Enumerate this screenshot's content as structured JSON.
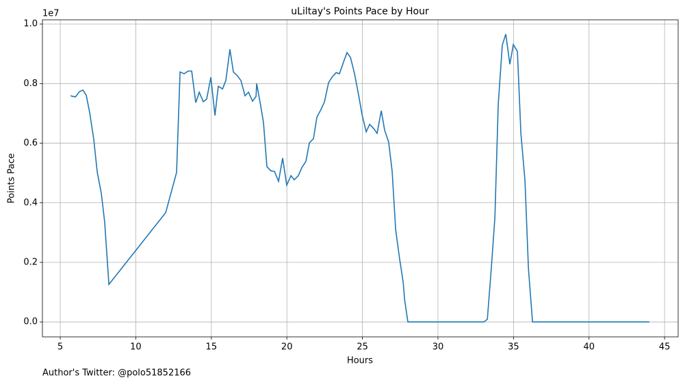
{
  "chart_data": {
    "type": "line",
    "title": "uLiltay's Points Pace by Hour",
    "x_label": "Hours",
    "y_label": "Points Pace",
    "y_offset_label": "1e7",
    "annotation": "Author's Twitter: @polo51852166",
    "color": "#1f77b4",
    "grid": true,
    "x": [
      5.68,
      6.0,
      6.27,
      6.5,
      6.72,
      6.95,
      7.22,
      7.45,
      7.72,
      7.94,
      8.22,
      11.98,
      12.7,
      12.93,
      13.2,
      13.47,
      13.7,
      13.97,
      14.2,
      14.47,
      14.69,
      14.97,
      15.24,
      15.46,
      15.74,
      15.96,
      16.23,
      16.46,
      16.73,
      16.96,
      17.23,
      17.46,
      17.73,
      17.96,
      18.0,
      18.23,
      18.45,
      18.68,
      18.95,
      19.18,
      19.45,
      19.72,
      19.99,
      20.27,
      20.49,
      20.76,
      20.99,
      21.26,
      21.49,
      21.76,
      21.99,
      22.26,
      22.49,
      22.76,
      22.98,
      23.26,
      23.48,
      23.75,
      23.98,
      24.21,
      24.48,
      24.75,
      24.98,
      25.25,
      25.48,
      25.75,
      25.97,
      26.25,
      26.47,
      26.74,
      26.97,
      27.2,
      27.47,
      27.7,
      27.79,
      28.01,
      33.04,
      33.27,
      33.54,
      33.77,
      33.99,
      34.26,
      34.49,
      34.76,
      34.99,
      35.26,
      35.49,
      35.76,
      35.99,
      36.26,
      44.0
    ],
    "values": [
      0.759,
      0.755,
      0.773,
      0.778,
      0.761,
      0.702,
      0.612,
      0.502,
      0.431,
      0.335,
      0.126,
      0.367,
      0.502,
      0.839,
      0.833,
      0.842,
      0.842,
      0.736,
      0.771,
      0.739,
      0.748,
      0.821,
      0.693,
      0.791,
      0.782,
      0.81,
      0.915,
      0.839,
      0.826,
      0.81,
      0.759,
      0.771,
      0.741,
      0.757,
      0.8,
      0.736,
      0.67,
      0.521,
      0.507,
      0.505,
      0.472,
      0.55,
      0.459,
      0.491,
      0.477,
      0.491,
      0.518,
      0.539,
      0.601,
      0.615,
      0.688,
      0.713,
      0.739,
      0.803,
      0.821,
      0.837,
      0.833,
      0.872,
      0.904,
      0.888,
      0.833,
      0.761,
      0.695,
      0.638,
      0.663,
      0.649,
      0.633,
      0.709,
      0.644,
      0.603,
      0.505,
      0.31,
      0.209,
      0.133,
      0.076,
      0,
      0,
      0.009,
      0.186,
      0.351,
      0.729,
      0.929,
      0.966,
      0.865,
      0.931,
      0.908,
      0.633,
      0.475,
      0.179,
      0,
      0
    ],
    "xlim": [
      3.82,
      45.9
    ],
    "ylim": [
      -0.05,
      1.014
    ],
    "xticks": [
      5,
      10,
      15,
      20,
      25,
      30,
      35,
      40,
      45
    ],
    "yticks": [
      {
        "value": 0,
        "label": "0.0"
      },
      {
        "value": 0.2,
        "label": "0.2"
      },
      {
        "value": 0.4,
        "label": "0.4"
      },
      {
        "value": 0.6,
        "label": "0.6"
      },
      {
        "value": 0.8,
        "label": "0.8"
      },
      {
        "value": 1.0,
        "label": "1.0"
      }
    ]
  }
}
